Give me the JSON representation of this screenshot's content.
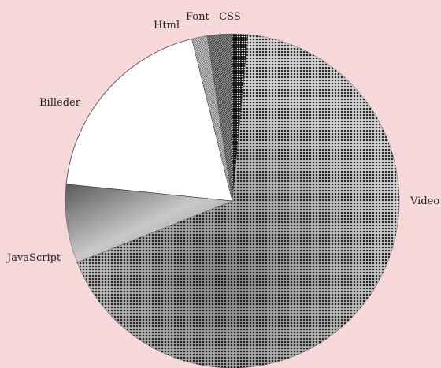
{
  "chart_data": {
    "type": "pie",
    "title": "",
    "start": "12 o'clock, clockwise",
    "slices": [
      {
        "label": "CSS",
        "value": 1.5,
        "color": "#2a2a2a",
        "pattern": "dots-dark"
      },
      {
        "label": "Video",
        "value": 67.5,
        "color": "#555555",
        "pattern": "dots-mixed"
      },
      {
        "label": "JavaScript",
        "value": 7.6,
        "color": "#777777",
        "pattern": "gradient-gray"
      },
      {
        "label": "Billeder",
        "value": 19.5,
        "color": "#ffffff",
        "pattern": "none"
      },
      {
        "label": "Html",
        "value": 1.5,
        "color": "#9a9a9a",
        "pattern": "hatch-light"
      },
      {
        "label": "Font",
        "value": 2.4,
        "color": "#6e6e6e",
        "pattern": "hatch-dark"
      }
    ]
  }
}
